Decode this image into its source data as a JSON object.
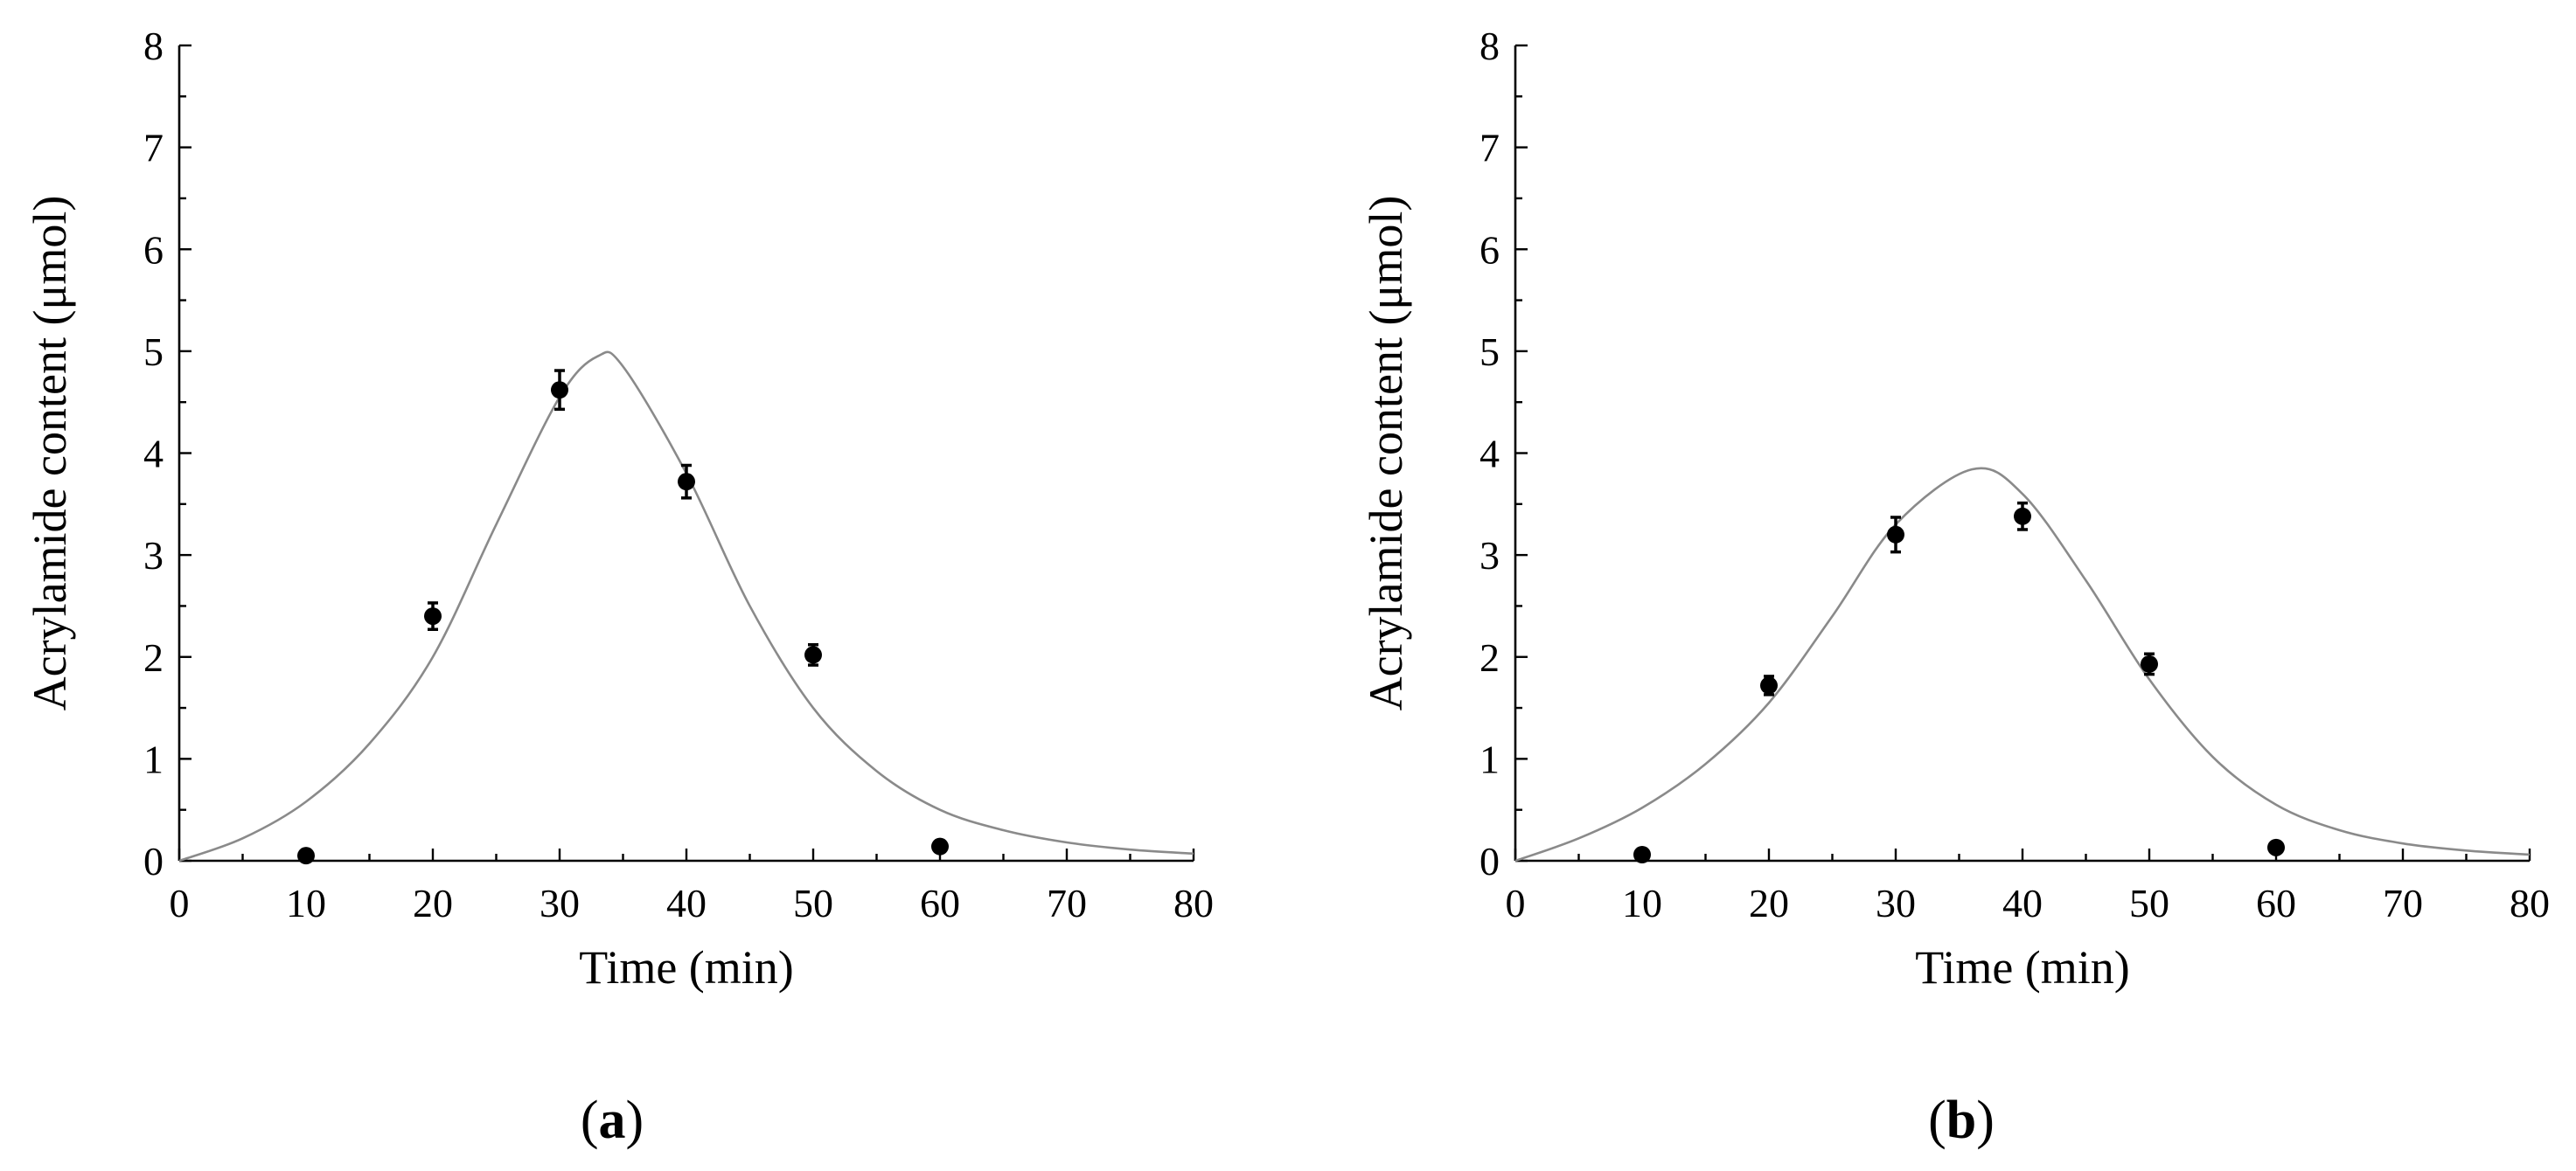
{
  "chart_data": [
    {
      "type": "scatter",
      "panel_label": "a",
      "xlabel": "Time (min)",
      "ylabel": "Acrylamide content (μmol)",
      "xlim": [
        0,
        80
      ],
      "ylim": [
        0,
        8
      ],
      "xticks": [
        0,
        10,
        20,
        30,
        40,
        50,
        60,
        70,
        80
      ],
      "yticks": [
        0,
        1,
        2,
        3,
        4,
        5,
        6,
        7,
        8
      ],
      "grid": false,
      "series": [
        {
          "kind": "points",
          "x": [
            10,
            20,
            30,
            40,
            50,
            60
          ],
          "y": [
            0.05,
            2.4,
            4.62,
            3.72,
            2.02,
            0.14
          ],
          "err": [
            0.0,
            0.13,
            0.19,
            0.16,
            0.1,
            0.0
          ]
        },
        {
          "kind": "fit_line",
          "x": [
            0,
            5,
            10,
            15,
            20,
            25,
            30,
            33,
            35,
            40,
            45,
            50,
            55,
            60,
            65,
            70,
            75,
            80
          ],
          "y": [
            0.0,
            0.22,
            0.58,
            1.15,
            2.0,
            3.3,
            4.55,
            4.95,
            4.85,
            3.8,
            2.5,
            1.5,
            0.88,
            0.5,
            0.3,
            0.18,
            0.11,
            0.07
          ]
        }
      ]
    },
    {
      "type": "scatter",
      "panel_label": "b",
      "xlabel": "Time (min)",
      "ylabel": "Acrylamide content (μmol)",
      "xlim": [
        0,
        80
      ],
      "ylim": [
        0,
        8
      ],
      "xticks": [
        0,
        10,
        20,
        30,
        40,
        50,
        60,
        70,
        80
      ],
      "yticks": [
        0,
        1,
        2,
        3,
        4,
        5,
        6,
        7,
        8
      ],
      "grid": false,
      "series": [
        {
          "kind": "points",
          "x": [
            10,
            20,
            30,
            40,
            50,
            60
          ],
          "y": [
            0.06,
            1.72,
            3.2,
            3.38,
            1.93,
            0.13
          ],
          "err": [
            0.0,
            0.09,
            0.17,
            0.13,
            0.1,
            0.0
          ]
        },
        {
          "kind": "fit_line",
          "x": [
            0,
            5,
            10,
            15,
            20,
            25,
            30,
            36,
            40,
            45,
            50,
            55,
            60,
            65,
            70,
            75,
            80
          ],
          "y": [
            0.0,
            0.22,
            0.52,
            0.95,
            1.55,
            2.4,
            3.3,
            3.84,
            3.6,
            2.75,
            1.78,
            1.02,
            0.55,
            0.3,
            0.17,
            0.1,
            0.06
          ]
        }
      ]
    }
  ]
}
